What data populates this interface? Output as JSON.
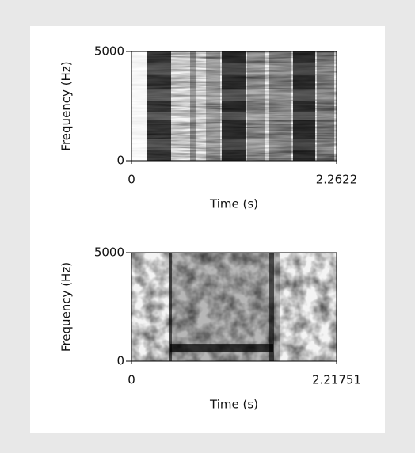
{
  "chart_data": [
    {
      "type": "spectrogram",
      "xlabel": "Time (s)",
      "ylabel": "Frequency (Hz)",
      "xlim": [
        0,
        2.2622
      ],
      "ylim": [
        0,
        5000
      ],
      "xticks": [
        0,
        2.2622
      ],
      "yticks": [
        0,
        5000
      ]
    },
    {
      "type": "spectrogram",
      "xlabel": "Time (s)",
      "ylabel": "Frequency (Hz)",
      "xlim": [
        0,
        2.21751
      ],
      "ylim": [
        0,
        5000
      ],
      "xticks": [
        0,
        2.21751
      ],
      "yticks": [
        0,
        5000
      ]
    }
  ]
}
